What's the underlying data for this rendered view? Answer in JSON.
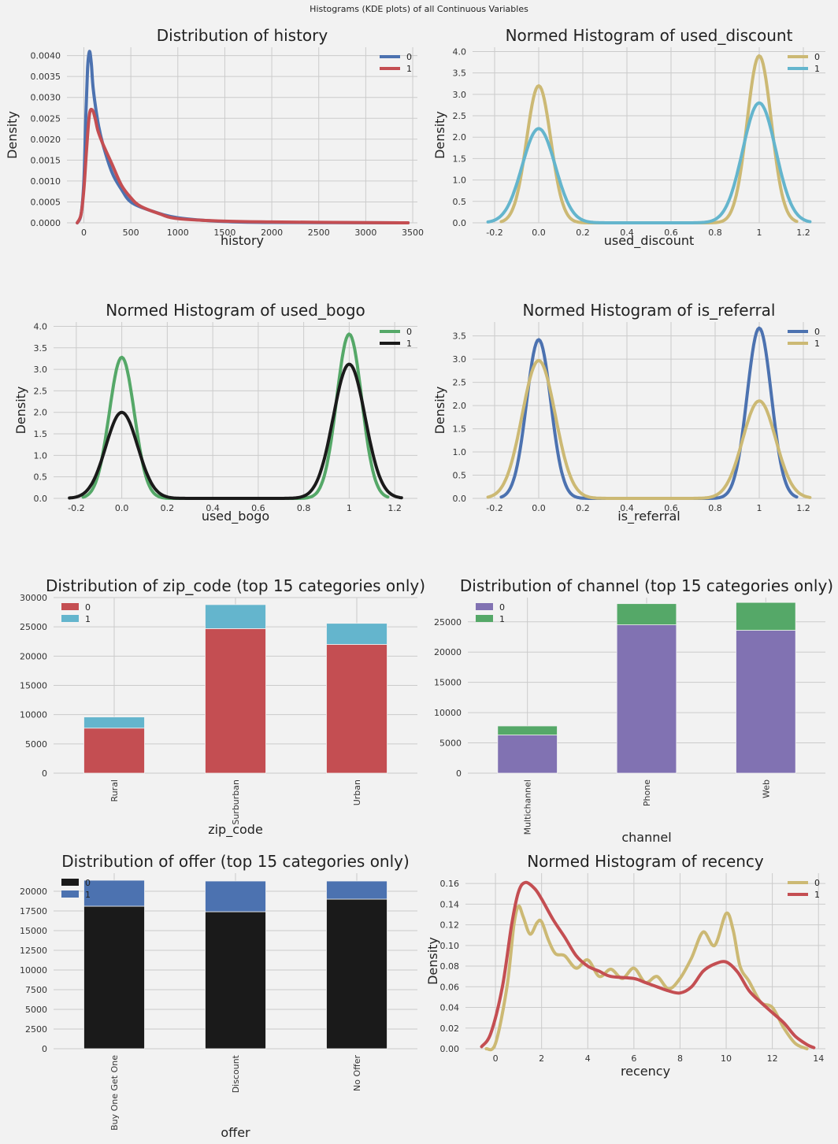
{
  "figure": {
    "suptitle": "Histograms (KDE plots) of all Continuous Variables"
  },
  "colors": {
    "blue": "#4c72b0",
    "red": "#c44e52",
    "gold": "#ccb974",
    "cyan": "#64b5cd",
    "green": "#55a868",
    "black": "#1a1a1a",
    "purple": "#8172b2",
    "background": "#f2f2f2",
    "grid": "#cbcbcb"
  },
  "chart_data": [
    {
      "type": "line",
      "title": "Distribution of history",
      "xlabel": "history",
      "ylabel": "Density",
      "xlim": [
        -180,
        3550
      ],
      "ylim": [
        0,
        0.0042
      ],
      "xticks": [
        0,
        500,
        1000,
        1500,
        2000,
        2500,
        3000,
        3500
      ],
      "yticks": [
        0.0,
        0.0005,
        0.001,
        0.0015,
        0.002,
        0.0025,
        0.003,
        0.0035,
        0.004
      ],
      "ytick_labels": [
        "0.0000",
        "0.0005",
        "0.0010",
        "0.0015",
        "0.0020",
        "0.0025",
        "0.0030",
        "0.0035",
        "0.0040"
      ],
      "legend": "top-right",
      "series": [
        {
          "name": "0",
          "color": "#4c72b0",
          "x": [
            -70,
            -30,
            0,
            20,
            40,
            60,
            80,
            100,
            150,
            200,
            300,
            400,
            500,
            700,
            1000,
            1500,
            2000,
            3000,
            3450
          ],
          "y": [
            0,
            0.0002,
            0.001,
            0.0025,
            0.0037,
            0.0041,
            0.0038,
            0.0032,
            0.0024,
            0.0019,
            0.0012,
            0.0008,
            0.0005,
            0.0003,
            0.00012,
            3e-05,
            1e-05,
            2e-06,
            0
          ]
        },
        {
          "name": "1",
          "color": "#c44e52",
          "x": [
            -70,
            -30,
            0,
            30,
            60,
            90,
            120,
            150,
            200,
            300,
            400,
            500,
            600,
            800,
            1000,
            1500,
            2000,
            3000,
            3450
          ],
          "y": [
            0,
            0.0002,
            0.0008,
            0.0018,
            0.0026,
            0.0027,
            0.0025,
            0.0022,
            0.0019,
            0.0014,
            0.0009,
            0.0006,
            0.0004,
            0.00022,
            0.0001,
            4e-05,
            2e-05,
            5e-06,
            0
          ]
        }
      ]
    },
    {
      "type": "line",
      "title": "Normed Histogram of used_discount",
      "xlabel": "used_discount",
      "ylabel": "Density",
      "xlim": [
        -0.3,
        1.3
      ],
      "ylim": [
        0,
        4.1
      ],
      "xticks": [
        -0.2,
        0.0,
        0.2,
        0.4,
        0.6,
        0.8,
        1.0,
        1.2
      ],
      "yticks": [
        0,
        0.5,
        1.0,
        1.5,
        2.0,
        2.5,
        3.0,
        3.5,
        4.0
      ],
      "ytick_labels": [
        "0.0",
        "0.5",
        "1.0",
        "1.5",
        "2.0",
        "2.5",
        "3.0",
        "3.5",
        "4.0"
      ],
      "legend": "top-right",
      "series": [
        {
          "name": "0",
          "color": "#ccb974",
          "kind": "bimodal",
          "peaks": [
            3.2,
            3.9
          ],
          "sigma": 0.055,
          "range": [
            -0.17,
            1.17
          ]
        },
        {
          "name": "1",
          "color": "#64b5cd",
          "kind": "bimodal",
          "peaks": [
            2.2,
            2.8
          ],
          "sigma": 0.075,
          "range": [
            -0.23,
            1.23
          ]
        }
      ]
    },
    {
      "type": "line",
      "title": "Normed Histogram of used_bogo",
      "xlabel": "used_bogo",
      "ylabel": "Density",
      "xlim": [
        -0.3,
        1.3
      ],
      "ylim": [
        0,
        4.1
      ],
      "xticks": [
        -0.2,
        0.0,
        0.2,
        0.4,
        0.6,
        0.8,
        1.0,
        1.2
      ],
      "yticks": [
        0,
        0.5,
        1.0,
        1.5,
        2.0,
        2.5,
        3.0,
        3.5,
        4.0
      ],
      "ytick_labels": [
        "0.0",
        "0.5",
        "1.0",
        "1.5",
        "2.0",
        "2.5",
        "3.0",
        "3.5",
        "4.0"
      ],
      "legend": "top-right",
      "series": [
        {
          "name": "0",
          "color": "#55a868",
          "kind": "bimodal",
          "peaks": [
            3.28,
            3.82
          ],
          "sigma": 0.055,
          "range": [
            -0.17,
            1.17
          ]
        },
        {
          "name": "1",
          "color": "#1a1a1a",
          "kind": "bimodal",
          "peaks": [
            2.0,
            3.12
          ],
          "sigma": 0.07,
          "range": [
            -0.23,
            1.23
          ]
        }
      ]
    },
    {
      "type": "line",
      "title": "Normed Histogram of is_referral",
      "xlabel": "is_referral",
      "ylabel": "Density",
      "xlim": [
        -0.3,
        1.3
      ],
      "ylim": [
        0,
        3.8
      ],
      "xticks": [
        -0.2,
        0.0,
        0.2,
        0.4,
        0.6,
        0.8,
        1.0,
        1.2
      ],
      "yticks": [
        0,
        0.5,
        1.0,
        1.5,
        2.0,
        2.5,
        3.0,
        3.5
      ],
      "ytick_labels": [
        "0.0",
        "0.5",
        "1.0",
        "1.5",
        "2.0",
        "2.5",
        "3.0",
        "3.5"
      ],
      "legend": "top-right",
      "series": [
        {
          "name": "0",
          "color": "#4c72b0",
          "kind": "bimodal",
          "peaks": [
            3.42,
            3.67
          ],
          "sigma": 0.055,
          "range": [
            -0.17,
            1.17
          ]
        },
        {
          "name": "1",
          "color": "#ccb974",
          "kind": "bimodal",
          "peaks": [
            2.97,
            2.1
          ],
          "sigma": 0.075,
          "range": [
            -0.23,
            1.23
          ]
        }
      ]
    },
    {
      "type": "bar",
      "stacked": true,
      "title": "Distribution of zip_code (top 15 categories only)",
      "xlabel": "zip_code",
      "ylabel": "",
      "categories": [
        "Rural",
        "Surburban",
        "Urban"
      ],
      "ylim": [
        0,
        30000
      ],
      "yticks": [
        0,
        5000,
        10000,
        15000,
        20000,
        25000,
        30000
      ],
      "ytick_labels": [
        "0",
        "5000",
        "10000",
        "15000",
        "20000",
        "25000",
        "30000"
      ],
      "legend": "top-left",
      "series": [
        {
          "name": "0",
          "color": "#c44e52",
          "values": [
            7700,
            24700,
            22000
          ]
        },
        {
          "name": "1",
          "color": "#64b5cd",
          "values": [
            1900,
            4100,
            3600
          ]
        }
      ]
    },
    {
      "type": "bar",
      "stacked": true,
      "title": "Distribution of channel (top 15 categories only)",
      "xlabel": "channel",
      "ylabel": "",
      "categories": [
        "Multichannel",
        "Phone",
        "Web"
      ],
      "ylim": [
        0,
        29000
      ],
      "yticks": [
        0,
        5000,
        10000,
        15000,
        20000,
        25000
      ],
      "ytick_labels": [
        "0",
        "5000",
        "10000",
        "15000",
        "20000",
        "25000"
      ],
      "legend": "top-left",
      "series": [
        {
          "name": "0",
          "color": "#8172b2",
          "values": [
            6300,
            24500,
            23600
          ]
        },
        {
          "name": "1",
          "color": "#55a868",
          "values": [
            1500,
            3500,
            4600
          ]
        }
      ]
    },
    {
      "type": "bar",
      "stacked": true,
      "title": "Distribution of offer (top 15 categories only)",
      "xlabel": "offer",
      "ylabel": "",
      "categories": [
        "Buy One Get One",
        "Discount",
        "No Offer"
      ],
      "ylim": [
        0,
        22300
      ],
      "yticks": [
        0,
        2500,
        5000,
        7500,
        10000,
        12500,
        15000,
        17500,
        20000
      ],
      "ytick_labels": [
        "0",
        "2500",
        "5000",
        "7500",
        "10000",
        "12500",
        "15000",
        "17500",
        "20000"
      ],
      "legend": "top-left",
      "series": [
        {
          "name": "0",
          "color": "#1a1a1a",
          "values": [
            18100,
            17400,
            19000
          ]
        },
        {
          "name": "1",
          "color": "#4c72b0",
          "values": [
            3300,
            3900,
            2300
          ]
        }
      ]
    },
    {
      "type": "line",
      "title": "Normed Histogram of recency",
      "xlabel": "recency",
      "ylabel": "Density",
      "xlim": [
        -1.3,
        14.3
      ],
      "ylim": [
        0,
        0.17
      ],
      "xticks": [
        0,
        2,
        4,
        6,
        8,
        10,
        12,
        14
      ],
      "yticks": [
        0,
        0.02,
        0.04,
        0.06,
        0.08,
        0.1,
        0.12,
        0.14,
        0.16
      ],
      "ytick_labels": [
        "0.00",
        "0.02",
        "0.04",
        "0.06",
        "0.08",
        "0.10",
        "0.12",
        "0.14",
        "0.16"
      ],
      "legend": "top-right",
      "series": [
        {
          "name": "0",
          "color": "#ccb974",
          "x": [
            -0.4,
            0,
            0.5,
            0.8,
            1.0,
            1.2,
            1.5,
            1.8,
            2.0,
            2.3,
            2.6,
            3.0,
            3.5,
            4.0,
            4.5,
            5.0,
            5.5,
            6.0,
            6.5,
            7.0,
            7.5,
            8.0,
            8.5,
            9.0,
            9.5,
            10.0,
            10.3,
            10.6,
            11.0,
            11.5,
            12.0,
            12.5,
            13.0,
            13.5
          ],
          "y": [
            0,
            0.005,
            0.06,
            0.12,
            0.138,
            0.128,
            0.111,
            0.122,
            0.123,
            0.105,
            0.092,
            0.09,
            0.078,
            0.086,
            0.07,
            0.077,
            0.068,
            0.078,
            0.064,
            0.07,
            0.058,
            0.068,
            0.088,
            0.113,
            0.1,
            0.131,
            0.115,
            0.08,
            0.065,
            0.045,
            0.04,
            0.02,
            0.005,
            0
          ]
        },
        {
          "name": "1",
          "color": "#c44e52",
          "x": [
            -0.6,
            -0.2,
            0.3,
            0.7,
            1.0,
            1.3,
            1.7,
            2.0,
            2.5,
            3.0,
            3.5,
            4.0,
            4.5,
            5.0,
            6.0,
            6.5,
            7.0,
            7.5,
            8.0,
            8.5,
            9.0,
            9.5,
            10.0,
            10.5,
            11.0,
            11.5,
            12.0,
            12.5,
            13.0,
            13.5,
            13.8
          ],
          "y": [
            0.002,
            0.015,
            0.06,
            0.12,
            0.152,
            0.161,
            0.155,
            0.145,
            0.125,
            0.108,
            0.09,
            0.08,
            0.075,
            0.07,
            0.068,
            0.064,
            0.06,
            0.056,
            0.054,
            0.06,
            0.075,
            0.082,
            0.084,
            0.074,
            0.056,
            0.045,
            0.035,
            0.025,
            0.012,
            0.004,
            0.001
          ]
        }
      ]
    }
  ]
}
